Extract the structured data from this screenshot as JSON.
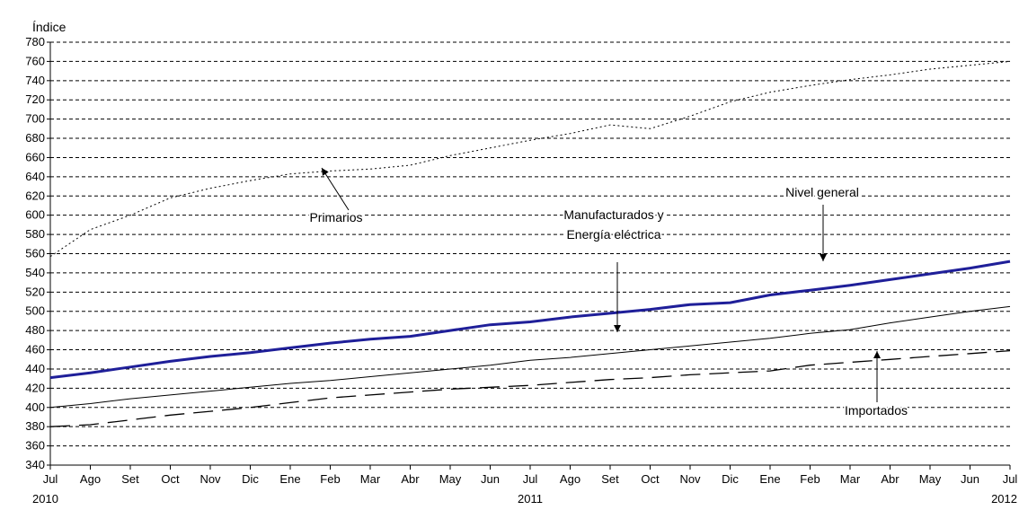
{
  "chart_data": {
    "type": "line",
    "title": "",
    "ylabel": "Índice",
    "xlabel": "",
    "ylim": [
      340,
      780
    ],
    "ytick_step": 20,
    "grid": "horizontal dashed",
    "legend": "annotations with arrows",
    "categories": [
      "Jul",
      "Ago",
      "Set",
      "Oct",
      "Nov",
      "Dic",
      "Ene",
      "Feb",
      "Mar",
      "Abr",
      "May",
      "Jun",
      "Jul",
      "Ago",
      "Set",
      "Oct",
      "Nov",
      "Dic",
      "Ene",
      "Feb",
      "Mar",
      "Abr",
      "May",
      "Jun",
      "Jul"
    ],
    "year_labels": [
      {
        "index": 0,
        "label": "2010"
      },
      {
        "index": 12,
        "label": "2011"
      },
      {
        "index": 24,
        "label": "2012"
      }
    ],
    "series": [
      {
        "name": "Nivel general",
        "color": "#1f1f99",
        "style": "solid-thick",
        "values": [
          431,
          436,
          442,
          448,
          453,
          457,
          462,
          467,
          471,
          474,
          480,
          486,
          489,
          494,
          498,
          502,
          507,
          509,
          517,
          522,
          527,
          533,
          539,
          545,
          552
        ]
      },
      {
        "name": "Primarios",
        "color": "#000000",
        "style": "dotted",
        "values": [
          557,
          585,
          600,
          618,
          628,
          636,
          643,
          646,
          648,
          652,
          662,
          670,
          678,
          685,
          694,
          690,
          703,
          718,
          728,
          735,
          741,
          746,
          752,
          756,
          760
        ]
      },
      {
        "name": "Manufacturados y Energía eléctrica",
        "color": "#000000",
        "style": "solid-thin",
        "values": [
          400,
          404,
          409,
          413,
          417,
          421,
          425,
          428,
          432,
          436,
          440,
          444,
          449,
          452,
          456,
          460,
          464,
          468,
          472,
          477,
          481,
          488,
          494,
          500,
          505
        ]
      },
      {
        "name": "Importados",
        "color": "#000000",
        "style": "long-dash",
        "values": [
          380,
          382,
          387,
          392,
          396,
          400,
          405,
          410,
          413,
          416,
          419,
          421,
          423,
          426,
          429,
          431,
          434,
          436,
          438,
          444,
          447,
          450,
          453,
          456,
          459
        ]
      }
    ],
    "annotations": [
      {
        "lines": [
          "Primarios"
        ],
        "series": 1
      },
      {
        "lines": [
          "Manufacturados y",
          "Energía eléctrica"
        ],
        "series": 2
      },
      {
        "lines": [
          "Nivel general"
        ],
        "series": 0
      },
      {
        "lines": [
          "Importados"
        ],
        "series": 3
      }
    ]
  }
}
